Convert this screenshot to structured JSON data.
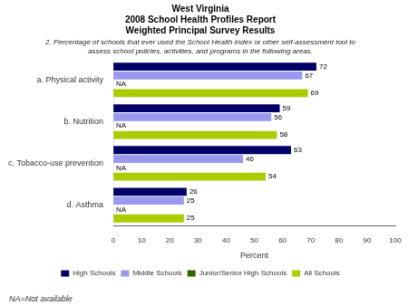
{
  "chart_data": {
    "type": "bar",
    "orientation": "horizontal",
    "title": [
      "West Virginia",
      "2008 School Health Profiles Report",
      "Weighted Principal Survey Results"
    ],
    "subtitle": "2. Percentage of schools that ever used the School Health Index or other self-assessment tool to\nassess school policies, activities, and programs in the following areas.",
    "footnote": "NA=Not available",
    "categories": [
      "a. Physical activity",
      "b. Nutrition",
      "c. Tobacco-use prevention",
      "d. Asthma"
    ],
    "series": [
      {
        "name": "High Schools",
        "color": "#000066",
        "values": [
          72,
          59,
          63,
          26
        ]
      },
      {
        "name": "Middle Schools",
        "color": "#9999ee",
        "values": [
          67,
          56,
          46,
          25
        ]
      },
      {
        "name": "Junior/Senior High Schools",
        "color": "#336600",
        "values": [
          null,
          null,
          null,
          null
        ],
        "value_labels": [
          "NA",
          "NA",
          "NA",
          "NA"
        ]
      },
      {
        "name": "All Schools",
        "color": "#aacc00",
        "values": [
          69,
          58,
          54,
          25
        ]
      }
    ],
    "xlabel": "Percent",
    "xlim": [
      0,
      100
    ],
    "xticks": [
      0,
      10,
      20,
      30,
      40,
      50,
      60,
      70,
      80,
      90,
      100
    ],
    "data_labels": true,
    "grid": false,
    "legend": "bottom"
  }
}
